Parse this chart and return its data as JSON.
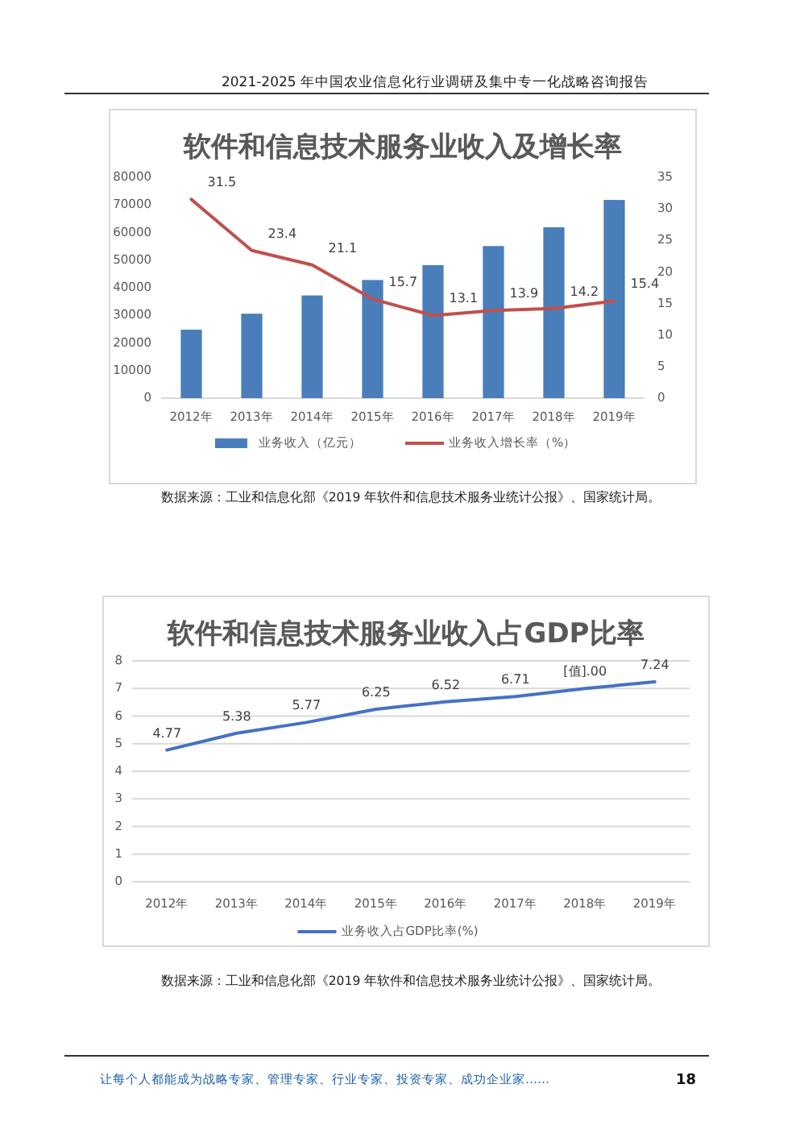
{
  "chart_data": [
    {
      "type": "bar",
      "title": "软件和信息技术服务业收入及增长率",
      "categories": [
        "2012年",
        "2013年",
        "2014年",
        "2015年",
        "2016年",
        "2017年",
        "2018年",
        "2019年"
      ],
      "series": [
        {
          "name": "业务收入（亿元）",
          "color": "#4a7ebb",
          "values": [
            24800,
            30600,
            37200,
            42800,
            48200,
            55100,
            61900,
            71800
          ]
        },
        {
          "name": "业务收入增长率（%）",
          "type": "line",
          "axis": "y2",
          "color": "#c0504d",
          "values": [
            31.5,
            23.4,
            21.1,
            15.7,
            13.1,
            13.9,
            14.2,
            15.4
          ],
          "value_labels": [
            "31.5",
            "23.4",
            "21.1",
            "15.7",
            "13.1",
            "13.9",
            "14.2",
            "15.4"
          ]
        }
      ],
      "ylim": [
        0,
        80000
      ],
      "yticks": [
        0,
        10000,
        20000,
        30000,
        40000,
        50000,
        60000,
        70000,
        80000
      ],
      "y2lim": [
        0,
        35
      ],
      "y2ticks": [
        0,
        5,
        10,
        15,
        20,
        25,
        30,
        35
      ],
      "grid": false,
      "legend": "bottom",
      "marker": "none",
      "line_style": "solid",
      "annotations": [
        "2021-2025 年中国农业信息化行业调研及集中专一化战略咨询报告",
        "数据来源：工业和信息化部《2019 年软件和信息技术服务业统计公报》、国家统计局。"
      ]
    },
    {
      "type": "line",
      "title": "软件和信息技术服务业收入占GDP比率",
      "categories": [
        "2012年",
        "2013年",
        "2014年",
        "2015年",
        "2016年",
        "2017年",
        "2018年",
        "2019年"
      ],
      "series": [
        {
          "name": "业务收入占GDP比率(%)",
          "color": "#4472c4",
          "values": [
            4.77,
            5.38,
            5.77,
            6.25,
            6.52,
            6.71,
            7.0,
            7.24
          ],
          "value_labels": [
            "4.77",
            "5.38",
            "5.77",
            "6.25",
            "6.52",
            "6.71",
            null,
            "7.24"
          ]
        }
      ],
      "ylim": [
        0,
        8
      ],
      "yticks": [
        0,
        1,
        2,
        3,
        4,
        5,
        6,
        7,
        8
      ],
      "grid": "y",
      "legend": "bottom",
      "marker": "none",
      "line_style": "solid",
      "annotations": [
        "数据来源：工业和信息化部《2019 年软件和信息技术服务业统计公报》、国家统计局。",
        "让每个人都能成为战略专家、管理专家、行业专家、投资专家、成功企业家……",
        "18",
        {
          "text": "[值].00",
          "x": "2018年",
          "y": 7.0
        }
      ]
    }
  ]
}
